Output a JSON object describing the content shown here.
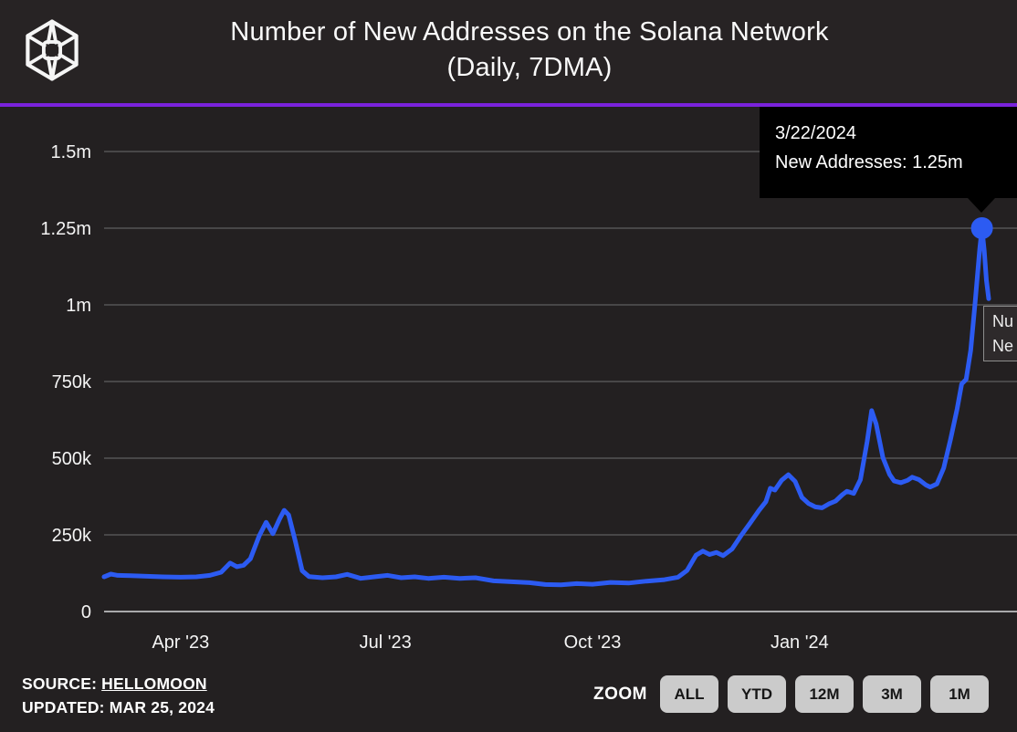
{
  "header": {
    "title_line1": "Number of New Addresses on the Solana Network",
    "title_line2": "(Daily, 7DMA)"
  },
  "colors": {
    "background": "#232021",
    "header_background": "#272324",
    "accent_purple": "#7A22DC",
    "line_blue": "#2C5BF2",
    "gridline": "#545456",
    "tooltip_background": "#000000",
    "button_background": "#CBCBCB"
  },
  "tooltip": {
    "date": "3/22/2024",
    "text": "New Addresses: 1.25m"
  },
  "side_tooltip": {
    "line1": "Nu",
    "line2": "Ne"
  },
  "footer": {
    "source_label": "SOURCE:",
    "source_link": "HELLOMOON",
    "updated": "UPDATED: MAR 25, 2024",
    "zoom_label": "ZOOM",
    "zoom_buttons": [
      "ALL",
      "YTD",
      "12M",
      "3M",
      "1M"
    ]
  },
  "chart_data": {
    "type": "line",
    "title": "Number of New Addresses on the Solana Network (Daily, 7DMA)",
    "xlabel": "",
    "ylabel": "",
    "legend": "none",
    "grid": "horizontal",
    "ylim": [
      0,
      1500000
    ],
    "x_range": [
      "2023-02-26",
      "2024-03-25"
    ],
    "y_ticks": [
      {
        "label": "1.5m",
        "value": 1500000
      },
      {
        "label": "1.25m",
        "value": 1250000
      },
      {
        "label": "1m",
        "value": 1000000
      },
      {
        "label": "750k",
        "value": 750000
      },
      {
        "label": "500k",
        "value": 500000
      },
      {
        "label": "250k",
        "value": 250000
      },
      {
        "label": "0",
        "value": 0
      }
    ],
    "x_ticks": [
      {
        "label": "Apr '23",
        "date": "2023-04-01"
      },
      {
        "label": "Jul '23",
        "date": "2023-07-01"
      },
      {
        "label": "Oct '23",
        "date": "2023-10-01"
      },
      {
        "label": "Jan '24",
        "date": "2024-01-01"
      }
    ],
    "series": [
      {
        "name": "New Addresses",
        "color": "#2C5BF2",
        "points": [
          [
            "2023-02-26",
            113000
          ],
          [
            "2023-03-01",
            122000
          ],
          [
            "2023-03-04",
            118000
          ],
          [
            "2023-03-10",
            117000
          ],
          [
            "2023-03-17",
            115000
          ],
          [
            "2023-03-24",
            113000
          ],
          [
            "2023-04-01",
            112000
          ],
          [
            "2023-04-08",
            113000
          ],
          [
            "2023-04-14",
            118000
          ],
          [
            "2023-04-19",
            128000
          ],
          [
            "2023-04-23",
            158000
          ],
          [
            "2023-04-26",
            146000
          ],
          [
            "2023-04-29",
            151000
          ],
          [
            "2023-05-02",
            172000
          ],
          [
            "2023-05-06",
            248000
          ],
          [
            "2023-05-09",
            291000
          ],
          [
            "2023-05-12",
            254000
          ],
          [
            "2023-05-15",
            302000
          ],
          [
            "2023-05-17",
            330000
          ],
          [
            "2023-05-19",
            315000
          ],
          [
            "2023-05-22",
            228000
          ],
          [
            "2023-05-25",
            133000
          ],
          [
            "2023-05-28",
            114000
          ],
          [
            "2023-06-03",
            110000
          ],
          [
            "2023-06-09",
            113000
          ],
          [
            "2023-06-14",
            121000
          ],
          [
            "2023-06-20",
            108000
          ],
          [
            "2023-06-26",
            113000
          ],
          [
            "2023-07-02",
            118000
          ],
          [
            "2023-07-08",
            110000
          ],
          [
            "2023-07-14",
            113000
          ],
          [
            "2023-07-20",
            108000
          ],
          [
            "2023-07-27",
            112000
          ],
          [
            "2023-08-03",
            108000
          ],
          [
            "2023-08-10",
            110000
          ],
          [
            "2023-08-18",
            100000
          ],
          [
            "2023-08-26",
            97000
          ],
          [
            "2023-09-03",
            94000
          ],
          [
            "2023-09-10",
            88000
          ],
          [
            "2023-09-17",
            87000
          ],
          [
            "2023-09-24",
            91000
          ],
          [
            "2023-10-01",
            89000
          ],
          [
            "2023-10-09",
            95000
          ],
          [
            "2023-10-17",
            93000
          ],
          [
            "2023-10-25",
            99000
          ],
          [
            "2023-11-02",
            104000
          ],
          [
            "2023-11-08",
            112000
          ],
          [
            "2023-11-12",
            134000
          ],
          [
            "2023-11-16",
            184000
          ],
          [
            "2023-11-19",
            197000
          ],
          [
            "2023-11-22",
            186000
          ],
          [
            "2023-11-25",
            193000
          ],
          [
            "2023-11-28",
            182000
          ],
          [
            "2023-12-02",
            204000
          ],
          [
            "2023-12-06",
            248000
          ],
          [
            "2023-12-10",
            288000
          ],
          [
            "2023-12-14",
            330000
          ],
          [
            "2023-12-17",
            358000
          ],
          [
            "2023-12-19",
            402000
          ],
          [
            "2023-12-21",
            396000
          ],
          [
            "2023-12-24",
            428000
          ],
          [
            "2023-12-27",
            446000
          ],
          [
            "2023-12-30",
            424000
          ],
          [
            "2024-01-02",
            372000
          ],
          [
            "2024-01-05",
            352000
          ],
          [
            "2024-01-08",
            341000
          ],
          [
            "2024-01-11",
            338000
          ],
          [
            "2024-01-14",
            351000
          ],
          [
            "2024-01-17",
            360000
          ],
          [
            "2024-01-20",
            381000
          ],
          [
            "2024-01-22",
            392000
          ],
          [
            "2024-01-25",
            385000
          ],
          [
            "2024-01-28",
            430000
          ],
          [
            "2024-01-31",
            555000
          ],
          [
            "2024-02-02",
            655000
          ],
          [
            "2024-02-04",
            612000
          ],
          [
            "2024-02-07",
            502000
          ],
          [
            "2024-02-10",
            447000
          ],
          [
            "2024-02-12",
            426000
          ],
          [
            "2024-02-15",
            420000
          ],
          [
            "2024-02-18",
            428000
          ],
          [
            "2024-02-20",
            438000
          ],
          [
            "2024-02-23",
            430000
          ],
          [
            "2024-02-26",
            413000
          ],
          [
            "2024-02-28",
            406000
          ],
          [
            "2024-03-02",
            416000
          ],
          [
            "2024-03-05",
            468000
          ],
          [
            "2024-03-08",
            560000
          ],
          [
            "2024-03-11",
            662000
          ],
          [
            "2024-03-13",
            742000
          ],
          [
            "2024-03-15",
            757000
          ],
          [
            "2024-03-17",
            852000
          ],
          [
            "2024-03-19",
            1010000
          ],
          [
            "2024-03-21",
            1180000
          ],
          [
            "2024-03-22",
            1250000
          ],
          [
            "2024-03-23",
            1178000
          ],
          [
            "2024-03-24",
            1080000
          ],
          [
            "2024-03-25",
            1020000
          ]
        ]
      }
    ],
    "highlight": {
      "date": "2024-03-22",
      "value": 1250000,
      "label": "New Addresses: 1.25m"
    }
  }
}
